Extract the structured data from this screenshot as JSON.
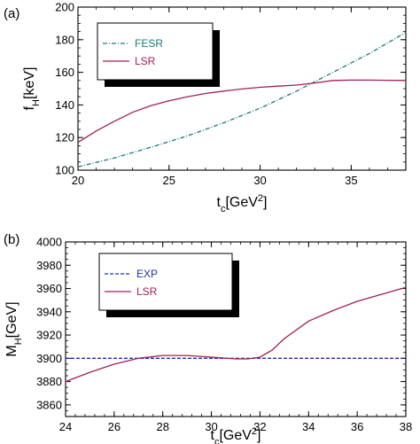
{
  "chart_data": [
    {
      "type": "line",
      "panel_label": "(a)",
      "xlabel": {
        "main": "t",
        "sub": "c",
        "unit_pre": "[GeV",
        "unit_sup": "2",
        "unit_post": "]"
      },
      "ylabel": {
        "main": "f",
        "sub": "H",
        "unit": "[keV]"
      },
      "xlim": [
        20,
        38
      ],
      "ylim": [
        100,
        200
      ],
      "xticks": [
        20,
        25,
        30,
        35
      ],
      "yticks": [
        100,
        120,
        140,
        160,
        180,
        200
      ],
      "legend_position": "top-left",
      "series": [
        {
          "name": "FESR",
          "color": "#1a7a74",
          "style": "dashdot",
          "x": [
            20,
            22,
            24,
            26,
            28,
            30,
            32,
            34,
            36,
            38
          ],
          "y": [
            102,
            107.5,
            114,
            121,
            129,
            138,
            148.5,
            160,
            171.5,
            184.5
          ]
        },
        {
          "name": "LSR",
          "color": "#a0205a",
          "style": "solid",
          "x": [
            20,
            21,
            22,
            23,
            24,
            25,
            26,
            27,
            28,
            29,
            30,
            31,
            32,
            33,
            34,
            35,
            36,
            37,
            38
          ],
          "y": [
            117,
            124,
            130,
            135.5,
            139.5,
            142.5,
            145,
            147,
            148.5,
            149.8,
            150.8,
            151.5,
            152.2,
            153.5,
            155,
            155.2,
            155.2,
            155.1,
            155
          ]
        }
      ]
    },
    {
      "type": "line",
      "panel_label": "(b)",
      "xlabel": {
        "main": "t",
        "sub": "c",
        "unit_pre": "[GeV",
        "unit_sup": "2",
        "unit_post": "]"
      },
      "ylabel": {
        "main": "M",
        "sub": "H",
        "unit": "[GeV]"
      },
      "xlim": [
        24,
        38
      ],
      "ylim": [
        3850,
        4000
      ],
      "xticks": [
        24,
        26,
        28,
        30,
        32,
        34,
        36,
        38
      ],
      "yticks": [
        3860,
        3880,
        3900,
        3920,
        3940,
        3960,
        3980,
        4000
      ],
      "legend_position": "top-left",
      "series": [
        {
          "name": "EXP",
          "color": "#1f2fb0",
          "style": "dashed",
          "x": [
            24,
            38
          ],
          "y": [
            3900,
            3900
          ]
        },
        {
          "name": "LSR",
          "color": "#a0205a",
          "style": "solid",
          "x": [
            24,
            25,
            26,
            27,
            28,
            29,
            30,
            31,
            31.5,
            32,
            32.5,
            33,
            34,
            35,
            36,
            37,
            38
          ],
          "y": [
            3880,
            3888,
            3895,
            3900,
            3902.5,
            3902.5,
            3901,
            3899.5,
            3899.5,
            3901,
            3907,
            3917,
            3932,
            3941,
            3949,
            3955,
            3961
          ]
        }
      ]
    }
  ]
}
